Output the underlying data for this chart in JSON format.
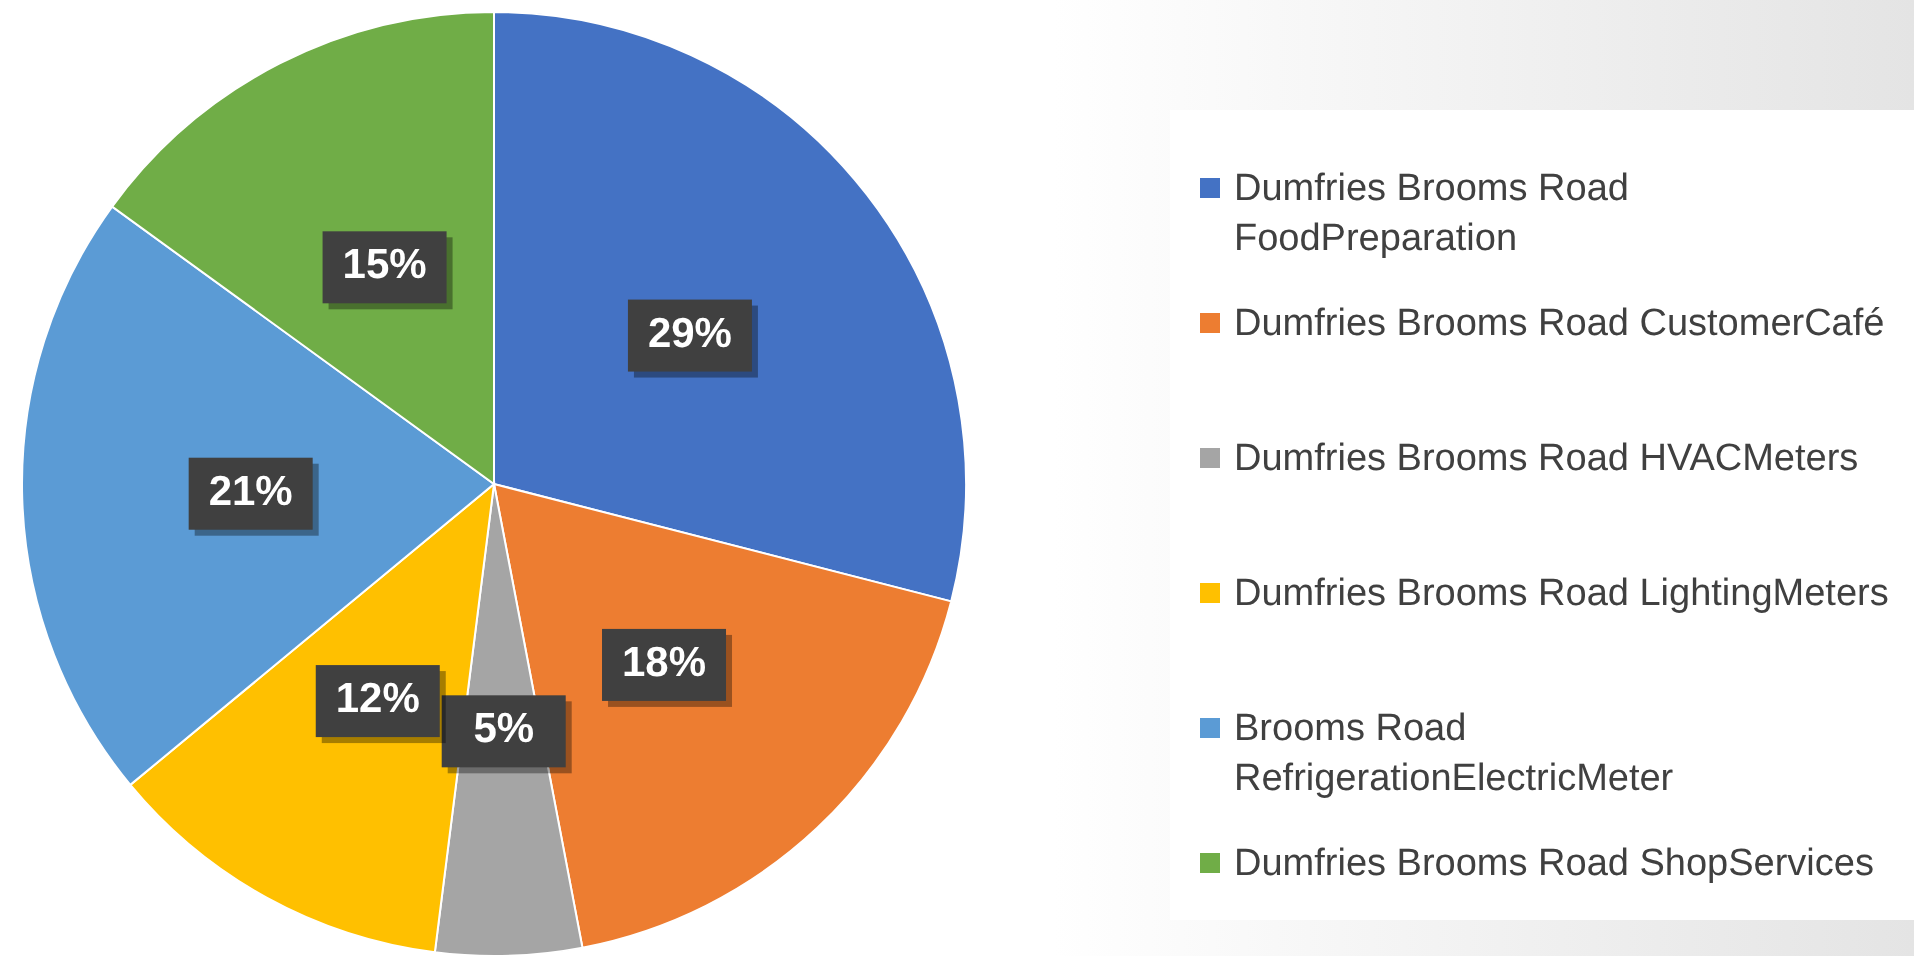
{
  "chart_data": {
    "type": "pie",
    "categories": [
      "Dumfries Brooms Road FoodPreparation",
      "Dumfries Brooms Road CustomerCafé",
      "Dumfries Brooms Road HVACMeters",
      "Dumfries Brooms Road LightingMeters",
      "Brooms Road RefrigerationElectricMeter",
      "Dumfries Brooms Road ShopServices"
    ],
    "values": [
      29,
      18,
      5,
      12,
      21,
      15
    ],
    "colors": [
      "#4472c4",
      "#ed7d31",
      "#a5a5a5",
      "#ffc000",
      "#5b9bd5",
      "#70ad47"
    ],
    "value_labels": [
      "29%",
      "18%",
      "5%",
      "12%",
      "21%",
      "15%"
    ],
    "legend": "right"
  }
}
